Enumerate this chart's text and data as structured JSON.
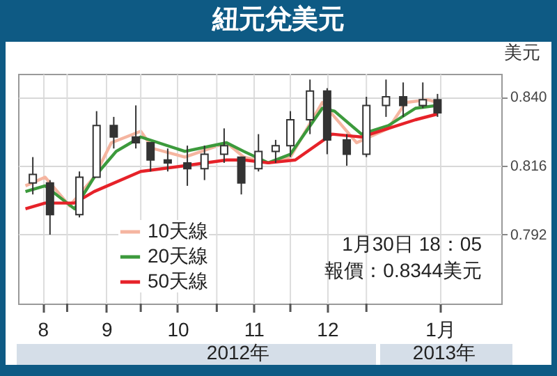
{
  "chart_data": {
    "type": "candlestick",
    "title": "紐元兌美元",
    "ylabel": "美元",
    "x": [
      "2012-08-18",
      "2012-08-25",
      "2012-09-06",
      "2012-09-13",
      "2012-09-20",
      "2012-09-29",
      "2012-10-05",
      "2012-10-12",
      "2012-10-20",
      "2012-10-27",
      "2012-11-04",
      "2012-11-11",
      "2012-11-18",
      "2012-11-25",
      "2012-12-01",
      "2012-12-09",
      "2012-12-16",
      "2012-12-24",
      "2013-01-01",
      "2013-01-09",
      "2013-01-16",
      "2013-01-24",
      "2013-01-30"
    ],
    "ohlc": [
      [
        0.81,
        0.819,
        0.806,
        0.813
      ],
      [
        0.81,
        0.811,
        0.792,
        0.799
      ],
      [
        0.799,
        0.814,
        0.798,
        0.812
      ],
      [
        0.812,
        0.835,
        0.812,
        0.83
      ],
      [
        0.83,
        0.833,
        0.822,
        0.826
      ],
      [
        0.826,
        0.837,
        0.822,
        0.824
      ],
      [
        0.824,
        0.824,
        0.814,
        0.818
      ],
      [
        0.818,
        0.822,
        0.814,
        0.817
      ],
      [
        0.817,
        0.823,
        0.809,
        0.815
      ],
      [
        0.815,
        0.823,
        0.811,
        0.82
      ],
      [
        0.82,
        0.829,
        0.817,
        0.823
      ],
      [
        0.819,
        0.819,
        0.806,
        0.81
      ],
      [
        0.815,
        0.827,
        0.814,
        0.821
      ],
      [
        0.821,
        0.825,
        0.817,
        0.823
      ],
      [
        0.823,
        0.835,
        0.819,
        0.832
      ],
      [
        0.832,
        0.846,
        0.827,
        0.842
      ],
      [
        0.842,
        0.843,
        0.82,
        0.825
      ],
      [
        0.825,
        0.827,
        0.816,
        0.82
      ],
      [
        0.82,
        0.84,
        0.819,
        0.837
      ],
      [
        0.837,
        0.846,
        0.833,
        0.84
      ],
      [
        0.84,
        0.845,
        0.833,
        0.837
      ],
      [
        0.837,
        0.845,
        0.836,
        0.839
      ],
      [
        0.839,
        0.841,
        0.833,
        0.8344
      ]
    ],
    "color": "#333333",
    "series": [
      {
        "name": "10天線",
        "type": "line",
        "color": "#f5b5a0",
        "x": [
          "2012-08-15",
          "2012-08-23",
          "2012-09-02",
          "2012-09-12",
          "2012-09-19",
          "2012-10-01",
          "2012-10-06",
          "2012-10-19",
          "2012-11-05",
          "2012-11-12",
          "2012-11-22",
          "2012-12-01",
          "2012-12-14",
          "2012-12-19",
          "2012-12-28",
          "2013-01-10",
          "2013-01-17",
          "2013-01-26",
          "2013-01-30"
        ],
        "values": [
          0.809,
          0.812,
          0.802,
          0.812,
          0.824,
          0.828,
          0.822,
          0.819,
          0.824,
          0.819,
          0.817,
          0.819,
          0.838,
          0.833,
          0.824,
          0.829,
          0.838,
          0.839,
          0.838
        ]
      },
      {
        "name": "20天線",
        "type": "line",
        "color": "#3c9a3c",
        "x": [
          "2012-08-15",
          "2012-08-23",
          "2012-09-04",
          "2012-09-12",
          "2012-09-21",
          "2012-10-01",
          "2012-10-19",
          "2012-11-05",
          "2012-11-12",
          "2012-11-22",
          "2012-12-01",
          "2012-12-14",
          "2012-12-19",
          "2012-12-30",
          "2013-01-10",
          "2013-01-21",
          "2013-01-30"
        ],
        "values": [
          0.807,
          0.809,
          0.801,
          0.812,
          0.821,
          0.826,
          0.821,
          0.824,
          0.821,
          0.817,
          0.82,
          0.836,
          0.835,
          0.827,
          0.83,
          0.836,
          0.837
        ]
      },
      {
        "name": "50天線",
        "type": "line",
        "color": "#e62229",
        "x": [
          "2012-08-15",
          "2012-08-23",
          "2012-09-04",
          "2012-09-12",
          "2012-10-01",
          "2012-10-19",
          "2012-11-05",
          "2012-11-12",
          "2012-11-22",
          "2012-12-03",
          "2012-12-18",
          "2012-12-30",
          "2013-01-10",
          "2013-01-21",
          "2013-01-30"
        ],
        "values": [
          0.801,
          0.803,
          0.803,
          0.807,
          0.814,
          0.816,
          0.818,
          0.818,
          0.817,
          0.818,
          0.827,
          0.826,
          0.829,
          0.832,
          0.834
        ]
      }
    ],
    "xlim": [
      "2012-08-12",
      "2013-02-25"
    ],
    "xticks": [
      {
        "value": "2012-08-22",
        "label": "8"
      },
      {
        "value": "2012-09-01",
        "label": null
      },
      {
        "value": "2012-09-17",
        "label": "9"
      },
      {
        "value": "2012-10-01",
        "label": null
      },
      {
        "value": "2012-10-16",
        "label": "10"
      },
      {
        "value": "2012-11-01",
        "label": null
      },
      {
        "value": "2012-11-16",
        "label": "11"
      },
      {
        "value": "2012-12-01",
        "label": null
      },
      {
        "value": "2012-12-16",
        "label": "12"
      },
      {
        "value": "2013-01-01",
        "label": null
      },
      {
        "value": "2013-01-31",
        "label": "1月"
      }
    ],
    "ylim": [
      0.768,
      0.848
    ],
    "yticks": [
      0.792,
      0.816,
      {
        "value": 0.84,
        "label": "0.840"
      }
    ],
    "grid": true,
    "legend": "bottom left",
    "annotations": [
      "2012年",
      "2013年",
      "1月30日 18：05",
      "報價：0.8344美元"
    ]
  }
}
